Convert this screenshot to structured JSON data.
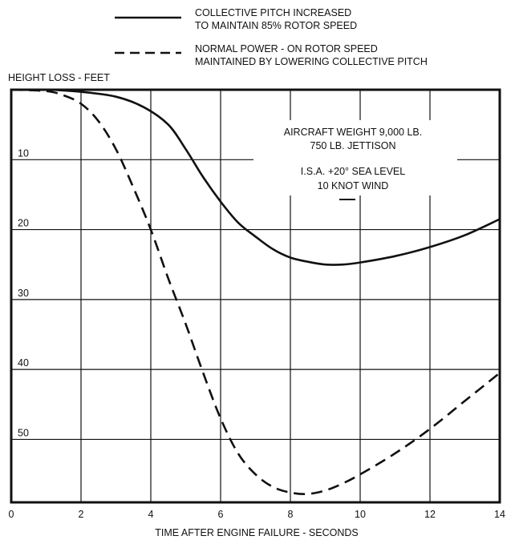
{
  "chart_data": {
    "type": "line",
    "title": "",
    "xlabel": "TIME AFTER ENGINE FAILURE - SECONDS",
    "ylabel": "HEIGHT LOSS - FEET",
    "xlim": [
      0,
      14
    ],
    "ylim": [
      0,
      59
    ],
    "y_inverted": true,
    "grid": true,
    "x_ticks": [
      "0",
      "2",
      "4",
      "6",
      "8",
      "10",
      "12",
      "14"
    ],
    "y_ticks": [
      "10",
      "20",
      "30",
      "40",
      "50"
    ],
    "legend_position": "top",
    "legend": [
      {
        "lines": [
          "COLLECTIVE PITCH INCREASED",
          "TO MAINTAIN 85% ROTOR SPEED"
        ],
        "style": "solid"
      },
      {
        "lines": [
          "NORMAL POWER - ON ROTOR SPEED",
          "MAINTAINED BY LOWERING COLLECTIVE PITCH"
        ],
        "style": "dashed"
      }
    ],
    "annotation": {
      "lines": [
        "AIRCRAFT WEIGHT 9,000 LB.",
        "750 LB. JETTISON",
        "I.S.A. +20° SEA LEVEL",
        "10 KNOT WIND"
      ]
    },
    "series": [
      {
        "style": "solid",
        "points": [
          [
            0,
            0
          ],
          [
            1,
            0
          ],
          [
            2,
            0.3
          ],
          [
            3,
            1
          ],
          [
            3.8,
            2.5
          ],
          [
            4.5,
            5
          ],
          [
            5,
            8.5
          ],
          [
            5.5,
            12.5
          ],
          [
            6,
            16
          ],
          [
            6.5,
            19
          ],
          [
            7,
            21
          ],
          [
            7.5,
            22.8
          ],
          [
            8,
            24
          ],
          [
            8.5,
            24.6
          ],
          [
            9,
            25
          ],
          [
            9.5,
            25
          ],
          [
            10,
            24.7
          ],
          [
            11,
            23.8
          ],
          [
            12,
            22.5
          ],
          [
            13,
            20.8
          ],
          [
            14,
            18.5
          ]
        ]
      },
      {
        "style": "dashed",
        "points": [
          [
            0,
            0
          ],
          [
            1,
            0.2
          ],
          [
            1.5,
            0.8
          ],
          [
            2,
            2
          ],
          [
            2.5,
            4.5
          ],
          [
            3,
            8.5
          ],
          [
            3.5,
            14
          ],
          [
            4,
            20
          ],
          [
            4.5,
            27
          ],
          [
            5,
            33.5
          ],
          [
            5.5,
            40.5
          ],
          [
            6,
            47
          ],
          [
            6.5,
            52
          ],
          [
            7,
            55
          ],
          [
            7.5,
            56.8
          ],
          [
            8,
            57.6
          ],
          [
            8.5,
            57.8
          ],
          [
            9,
            57.3
          ],
          [
            9.5,
            56.3
          ],
          [
            10,
            55
          ],
          [
            11,
            52
          ],
          [
            12,
            48.5
          ],
          [
            13,
            44.5
          ],
          [
            14,
            40.5
          ]
        ]
      }
    ]
  }
}
